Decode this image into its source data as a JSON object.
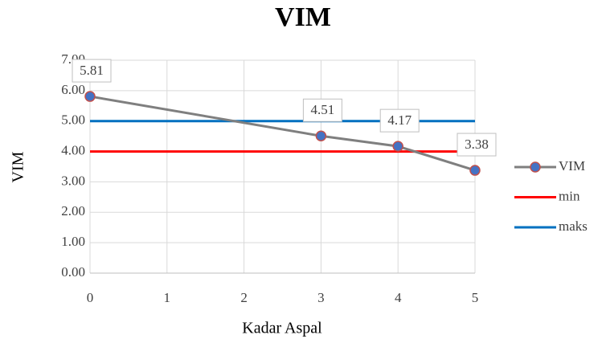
{
  "chart_data": {
    "type": "line",
    "title": "VIM",
    "x_label": "Kadar Aspal",
    "y_label": "VIM",
    "xlim": [
      0,
      5
    ],
    "xticks": [
      0,
      1,
      2,
      3,
      4,
      5
    ],
    "ylim": [
      0,
      7
    ],
    "yticks": [
      {
        "value": 0,
        "label": "0.00"
      },
      {
        "value": 1,
        "label": "1.00"
      },
      {
        "value": 2,
        "label": "2.00"
      },
      {
        "value": 3,
        "label": "3.00"
      },
      {
        "value": 4,
        "label": "4.00"
      },
      {
        "value": 5,
        "label": "5.00"
      },
      {
        "value": 6,
        "label": "6.00"
      },
      {
        "value": 7,
        "label": "7.00"
      }
    ],
    "grid": true,
    "legend": "right",
    "series": [
      {
        "name": "VIM",
        "color": "#7f7f7f",
        "marker_color": "#4472c4",
        "marker_edge": "#c0504d",
        "x": [
          0,
          3,
          4,
          5
        ],
        "values": [
          5.81,
          4.51,
          4.17,
          3.38
        ],
        "data_labels": true
      },
      {
        "name": "min",
        "color": "#ff0000",
        "x": [
          0,
          5
        ],
        "values": [
          4,
          4
        ]
      },
      {
        "name": "maks",
        "color": "#0070c0",
        "x": [
          0,
          5
        ],
        "values": [
          5,
          5
        ]
      }
    ]
  }
}
